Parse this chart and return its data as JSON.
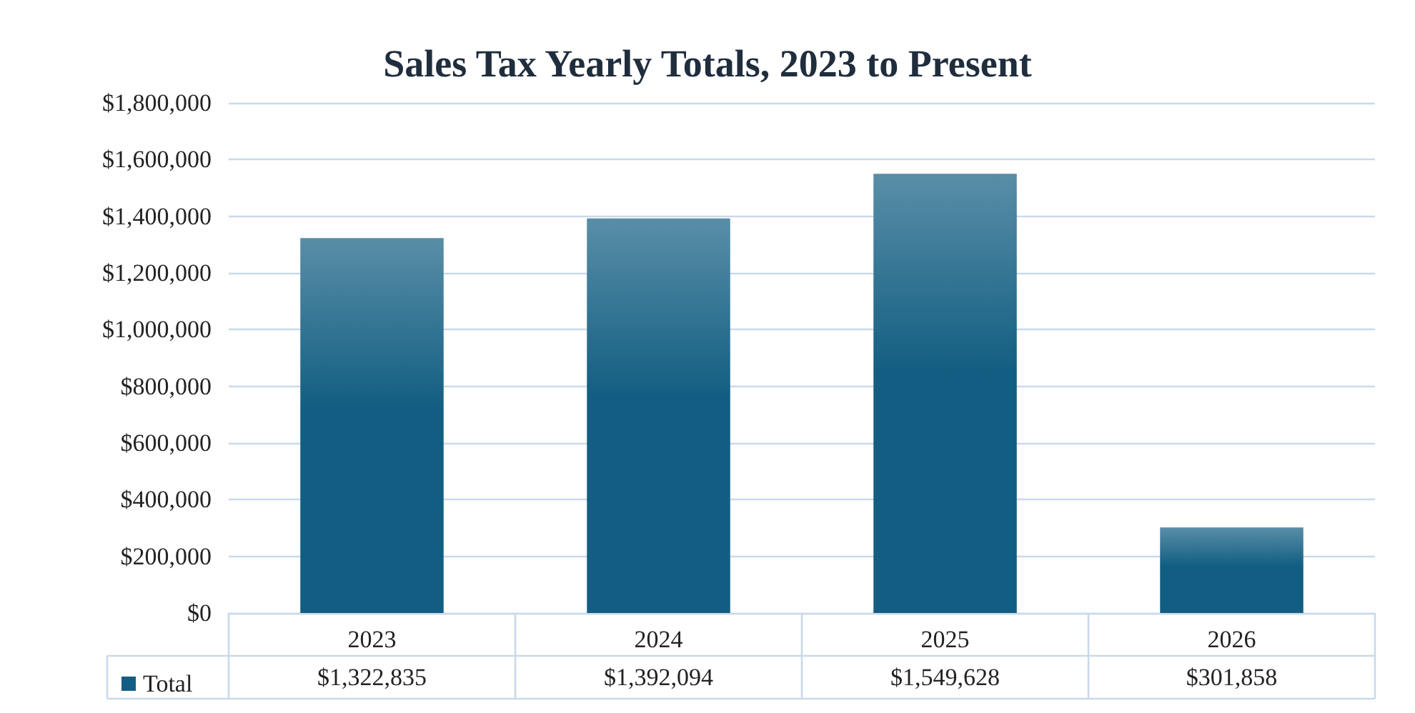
{
  "chart_data": {
    "type": "bar",
    "title": "Sales Tax Yearly Totals, 2023 to Present",
    "categories": [
      "2023",
      "2024",
      "2025",
      "2026"
    ],
    "series": [
      {
        "name": "Total",
        "color": "#125e82",
        "values": [
          1322835,
          1392094,
          1549628,
          301858
        ],
        "value_labels": [
          "$1,322,835",
          "$1,392,094",
          "$1,549,628",
          "$301,858"
        ]
      }
    ],
    "ylim": [
      0,
      1800000
    ],
    "yticks": [
      {
        "value": 0,
        "label": "$0"
      },
      {
        "value": 200000,
        "label": "$200,000"
      },
      {
        "value": 400000,
        "label": "$400,000"
      },
      {
        "value": 600000,
        "label": "$600,000"
      },
      {
        "value": 800000,
        "label": "$800,000"
      },
      {
        "value": 1000000,
        "label": "$1,000,000"
      },
      {
        "value": 1200000,
        "label": "$1,200,000"
      },
      {
        "value": 1400000,
        "label": "$1,400,000"
      },
      {
        "value": 1600000,
        "label": "$1,600,000"
      },
      {
        "value": 1800000,
        "label": "$1,800,000"
      }
    ],
    "grid": "y",
    "legend": "bottom"
  }
}
